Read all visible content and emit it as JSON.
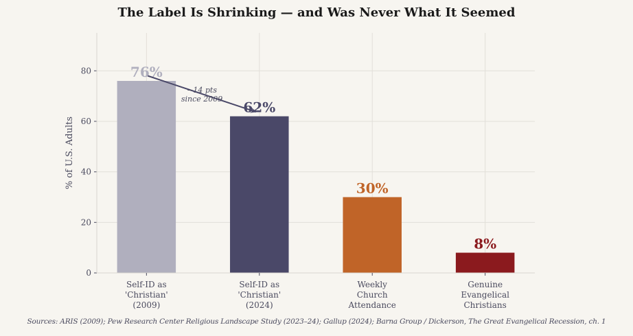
{
  "chart_data": {
    "type": "bar",
    "title": "The Label Is Shrinking — and Was Never What It Seemed",
    "xlabel": "",
    "ylabel": "% of U.S. Adults",
    "categories": [
      [
        "Self-ID as",
        "'Christian'",
        "(2009)"
      ],
      [
        "Self-ID as",
        "'Christian'",
        "(2024)"
      ],
      [
        "Weekly",
        "Church",
        "Attendance"
      ],
      [
        "Genuine",
        "Evangelical",
        "Christians"
      ]
    ],
    "values": [
      76,
      62,
      30,
      8
    ],
    "data_labels": [
      "76%",
      "62%",
      "30%",
      "8%"
    ],
    "colors": [
      "#b0afbe",
      "#4a4868",
      "#c06428",
      "#8b1a1e"
    ],
    "ylim": [
      0,
      95
    ],
    "yticks": [
      0,
      20,
      40,
      60,
      80
    ],
    "grid": true,
    "annotation": {
      "text": [
        "−14 pts",
        "since 2009"
      ],
      "from": {
        "category_index": 0,
        "value": 78
      },
      "to": {
        "category_index": 1,
        "value": 64
      },
      "color": "#4a4868"
    },
    "source": "Sources: ARIS (2009); Pew Research Center Religious Landscape Study (2023–24); Gallup (2024); Barna Group / Dickerson, The Great Evangelical Recession, ch. 1"
  }
}
